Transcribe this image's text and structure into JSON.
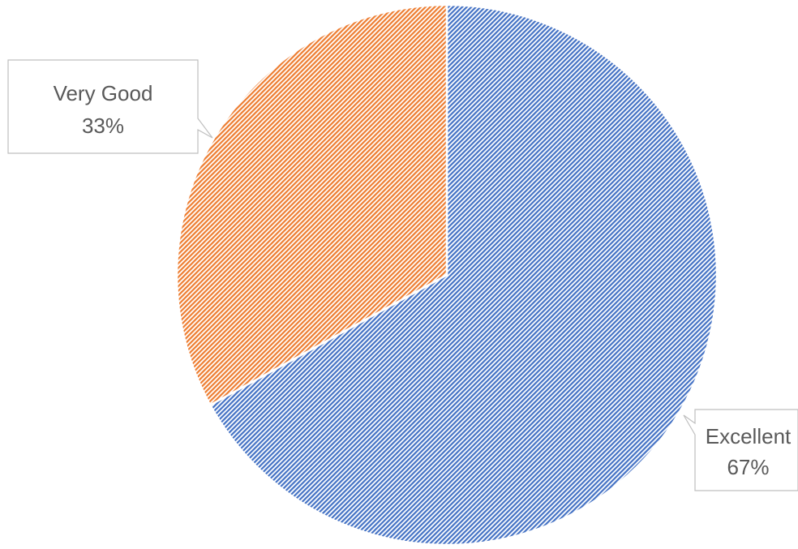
{
  "chart_data": {
    "type": "pie",
    "slices": [
      {
        "label": "Excellent",
        "percent_label": "67%",
        "value": 67,
        "color": "#4472C4"
      },
      {
        "label": "Very Good",
        "percent_label": "33%",
        "value": 33,
        "color": "#ED7D31"
      }
    ],
    "fill_pattern": "diagonal-hatch",
    "start_angle": "12 o'clock",
    "direction": "clockwise",
    "data_labels": "callouts with category name and percentage"
  }
}
